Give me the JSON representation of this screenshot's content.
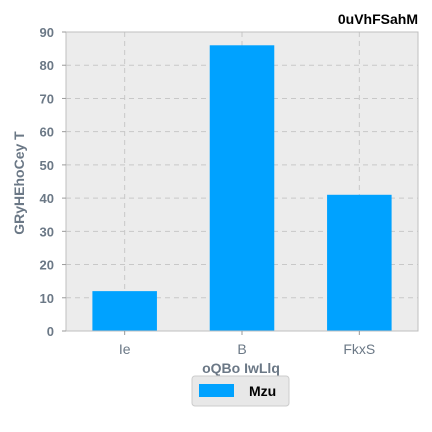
{
  "chart_data": {
    "type": "bar",
    "title": "0uVhFSahM",
    "xlabel": "oQBo IwLlq",
    "ylabel": "GRyHEhoCey T",
    "categories": [
      "Ie",
      "B",
      "FkxS"
    ],
    "series": [
      {
        "name": "Mzu",
        "values": [
          12,
          86,
          41
        ],
        "color": "#00a2ff"
      }
    ],
    "ylim": [
      0,
      90
    ],
    "yticks": [
      0,
      10,
      20,
      30,
      40,
      50,
      60,
      70,
      80,
      90
    ],
    "grid": true,
    "legend": "bottom-center",
    "plot_background": "#ececec"
  }
}
